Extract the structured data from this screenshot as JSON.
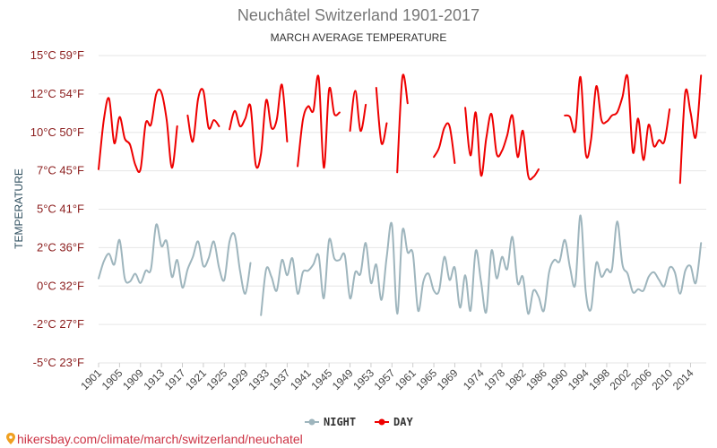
{
  "colors": {
    "day": "#ee0000",
    "night": "#9eb5bd",
    "grid": "#e6e6e6",
    "footer": "#cc3344"
  },
  "chart_data": {
    "type": "line",
    "title": "Neuchâtel Switzerland 1901-2017",
    "subtitle": "MARCH AVERAGE TEMPERATURE",
    "ylabel": "TEMPERATURE",
    "ylim": [
      -5,
      15
    ],
    "y_ticks": [
      {
        "value": 15,
        "label": "15°C 59°F"
      },
      {
        "value": 12.5,
        "label": "12°C 54°F"
      },
      {
        "value": 10,
        "label": "10°C 50°F"
      },
      {
        "value": 7.5,
        "label": "7°C 45°F"
      },
      {
        "value": 5,
        "label": "5°C 41°F"
      },
      {
        "value": 2.5,
        "label": "2°C 36°F"
      },
      {
        "value": 0,
        "label": "0°C 32°F"
      },
      {
        "value": -2.5,
        "label": "-2°C 27°F"
      },
      {
        "value": -5,
        "label": "-5°C 23°F"
      }
    ],
    "xlim": [
      1901,
      2017
    ],
    "x_ticks": [
      1901,
      1905,
      1909,
      1913,
      1917,
      1921,
      1925,
      1929,
      1933,
      1937,
      1941,
      1945,
      1949,
      1953,
      1957,
      1961,
      1965,
      1969,
      1974,
      1978,
      1982,
      1986,
      1990,
      1994,
      1998,
      2002,
      2006,
      2010,
      2014
    ],
    "grid": true,
    "legend": "bottom-center",
    "series": [
      {
        "name": "NIGHT",
        "x": [
          1901,
          1902,
          1903,
          1904,
          1905,
          1906,
          1907,
          1908,
          1909,
          1910,
          1911,
          1912,
          1913,
          1914,
          1915,
          1916,
          1917,
          1918,
          1919,
          1920,
          1921,
          1922,
          1923,
          1924,
          1925,
          1926,
          1927,
          1928,
          1929,
          1930,
          1931,
          1932,
          1933,
          1934,
          1935,
          1936,
          1937,
          1938,
          1939,
          1940,
          1941,
          1942,
          1943,
          1944,
          1945,
          1946,
          1947,
          1948,
          1949,
          1950,
          1951,
          1952,
          1953,
          1954,
          1955,
          1956,
          1957,
          1958,
          1959,
          1960,
          1961,
          1962,
          1963,
          1964,
          1965,
          1966,
          1967,
          1968,
          1969,
          1970,
          1971,
          1972,
          1973,
          1974,
          1975,
          1976,
          1977,
          1978,
          1979,
          1980,
          1981,
          1982,
          1983,
          1984,
          1985,
          1986,
          1987,
          1988,
          1989,
          1990,
          1991,
          1992,
          1993,
          1994,
          1995,
          1996,
          1997,
          1998,
          1999,
          2000,
          2001,
          2002,
          2003,
          2004,
          2005,
          2006,
          2007,
          2008,
          2009,
          2010,
          2011,
          2012,
          2013,
          2014,
          2015,
          2016,
          2017
        ],
        "values": [
          0.5,
          1.6,
          2.1,
          1.4,
          3.0,
          0.5,
          0.3,
          0.8,
          0.2,
          1.0,
          1.1,
          4.0,
          2.6,
          2.9,
          0.6,
          1.7,
          -0.1,
          1.1,
          1.9,
          2.9,
          1.3,
          1.8,
          2.9,
          1.2,
          0.4,
          2.9,
          3.3,
          1.0,
          -0.5,
          1.5,
          null,
          -1.9,
          1.1,
          0.6,
          -0.3,
          1.7,
          0.7,
          1.8,
          -0.5,
          0.9,
          1.0,
          1.4,
          2.0,
          -0.8,
          3.0,
          1.8,
          1.7,
          2.0,
          -0.8,
          0.9,
          0.8,
          2.8,
          0.2,
          1.4,
          -0.9,
          1.9,
          4.0,
          -1.8,
          3.6,
          2.2,
          2.1,
          -1.6,
          0.3,
          0.8,
          -0.3,
          -0.3,
          1.9,
          0.4,
          1.2,
          -1.4,
          0.7,
          -1.6,
          2.3,
          0.3,
          -1.7,
          2.3,
          0.5,
          1.9,
          1.1,
          3.2,
          0.2,
          0.6,
          -1.8,
          -0.3,
          -0.7,
          -1.6,
          0.9,
          1.7,
          1.6,
          3.0,
          1.2,
          0.1,
          4.6,
          -0.4,
          -1.5,
          1.5,
          0.6,
          1.1,
          1.1,
          4.2,
          1.4,
          0.8,
          -0.4,
          -0.2,
          -0.3,
          0.6,
          0.9,
          0.4,
          0.0,
          1.2,
          0.9,
          -0.5,
          1.0,
          1.3,
          0.2,
          2.8,
          null
        ]
      },
      {
        "name": "DAY",
        "x": [
          1901,
          1902,
          1903,
          1904,
          1905,
          1906,
          1907,
          1908,
          1909,
          1910,
          1911,
          1912,
          1913,
          1914,
          1915,
          1916,
          1917,
          1918,
          1919,
          1920,
          1921,
          1922,
          1923,
          1924,
          1925,
          1926,
          1927,
          1928,
          1929,
          1930,
          1931,
          1932,
          1933,
          1934,
          1935,
          1936,
          1937,
          1938,
          1939,
          1940,
          1941,
          1942,
          1943,
          1944,
          1945,
          1946,
          1947,
          1948,
          1949,
          1950,
          1951,
          1952,
          1953,
          1954,
          1955,
          1956,
          1957,
          1958,
          1959,
          1960,
          1961,
          1962,
          1963,
          1964,
          1965,
          1966,
          1967,
          1968,
          1969,
          1970,
          1971,
          1972,
          1973,
          1974,
          1975,
          1976,
          1977,
          1978,
          1979,
          1980,
          1981,
          1982,
          1983,
          1984,
          1985,
          1986,
          1987,
          1988,
          1989,
          1990,
          1991,
          1992,
          1993,
          1994,
          1995,
          1996,
          1997,
          1998,
          1999,
          2000,
          2001,
          2002,
          2003,
          2004,
          2005,
          2006,
          2007,
          2008,
          2009,
          2010,
          2011,
          2012,
          2013,
          2014,
          2015,
          2016,
          2017
        ],
        "values": [
          7.6,
          10.8,
          12.2,
          9.3,
          11.0,
          9.6,
          9.2,
          7.9,
          7.6,
          10.6,
          10.5,
          12.5,
          12.6,
          10.8,
          7.7,
          10.4,
          null,
          11.1,
          9.4,
          12.2,
          12.7,
          10.3,
          10.8,
          10.4,
          null,
          10.2,
          11.4,
          10.4,
          10.9,
          11.7,
          7.9,
          8.6,
          12.1,
          10.3,
          10.8,
          13.1,
          9.4,
          null,
          7.8,
          10.8,
          11.7,
          11.4,
          13.6,
          7.7,
          12.8,
          11.2,
          11.3,
          null,
          10.1,
          12.7,
          10.1,
          11.8,
          null,
          12.9,
          9.3,
          10.6,
          null,
          7.4,
          13.6,
          11.9,
          null,
          null,
          null,
          null,
          8.4,
          9.0,
          10.3,
          10.4,
          8.0,
          null,
          11.6,
          8.5,
          11.3,
          7.2,
          9.6,
          11.2,
          8.6,
          8.8,
          9.8,
          11.1,
          8.4,
          10.1,
          7.2,
          7.1,
          7.6,
          null,
          null,
          null,
          null,
          11.1,
          11.0,
          10.1,
          13.6,
          8.6,
          9.5,
          13.0,
          10.8,
          10.7,
          11.1,
          11.3,
          12.3,
          13.6,
          8.7,
          10.9,
          8.2,
          10.5,
          9.1,
          9.5,
          9.4,
          11.5,
          null,
          6.7,
          12.6,
          11.3,
          9.7,
          13.7,
          null
        ]
      }
    ]
  },
  "legend": {
    "night_label": "NIGHT",
    "day_label": "DAY"
  },
  "footer": {
    "text": "hikersbay.com/climate/march/switzerland/neuchatel"
  }
}
